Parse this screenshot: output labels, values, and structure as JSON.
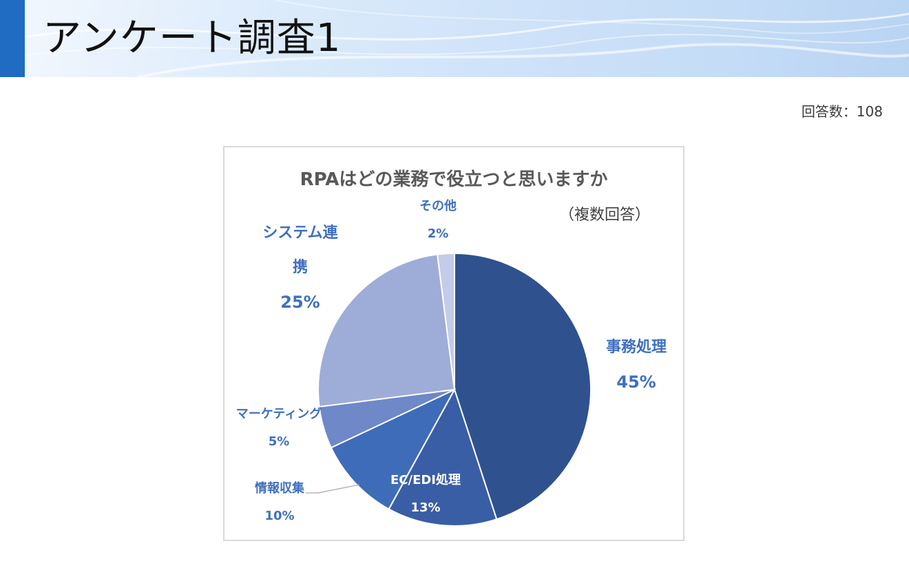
{
  "page": {
    "title": "アンケート調査1",
    "response_count": "回答数：108"
  },
  "chart_data": {
    "type": "pie",
    "title": "RPAはどの業務で役立つと思いますか",
    "subtitle": "（複数回答）",
    "slices": [
      {
        "name": "事務処理",
        "value": 45,
        "label": "45%",
        "color": "#2f528f"
      },
      {
        "name": "EC/EDI処理",
        "value": 13,
        "label": "13%",
        "color": "#3a5ea6"
      },
      {
        "name": "情報収集",
        "value": 10,
        "label": "10%",
        "color": "#3f6cb8"
      },
      {
        "name": "マーケティング",
        "value": 5,
        "label": "5%",
        "color": "#6e88c8"
      },
      {
        "name": "システム連携",
        "value": 25,
        "label": "25%",
        "color": "#9eadd8"
      },
      {
        "name": "その他",
        "value": 2,
        "label": "2%",
        "color": "#c3cce8"
      }
    ],
    "legend": "none",
    "label_color": "#3f6fbf",
    "inner_label_color": "#ffffff"
  }
}
